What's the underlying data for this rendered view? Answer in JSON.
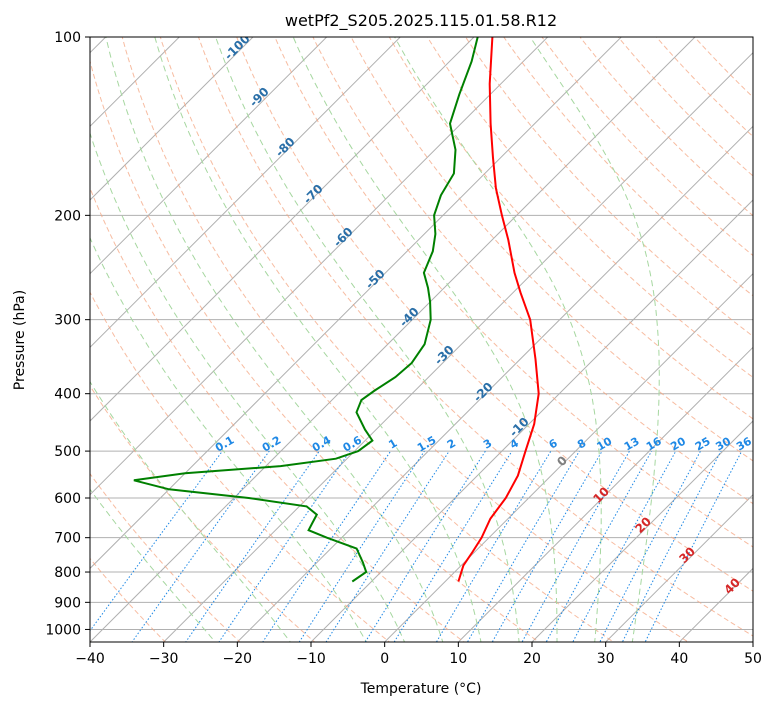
{
  "chart_data": {
    "type": "line",
    "title": "wetPf2_S205.2025.115.01.58.R12",
    "xlabel": "Temperature (°C)",
    "ylabel": "Pressure (hPa)",
    "xlim": [
      -40,
      50
    ],
    "ylim": [
      1050,
      100
    ],
    "y_scale": "log",
    "grid": true,
    "x_ticks": [
      -40,
      -30,
      -20,
      -10,
      0,
      10,
      20,
      30,
      40,
      50
    ],
    "y_ticks": [
      100,
      200,
      300,
      400,
      500,
      600,
      700,
      800,
      900,
      1000
    ],
    "series": [
      {
        "role": "temperature",
        "color": "#ff0000",
        "points": [
          {
            "p": 830,
            "t": 1.8
          },
          {
            "p": 780,
            "t": 0.3
          },
          {
            "p": 740,
            "t": -0.3
          },
          {
            "p": 700,
            "t": -1.0
          },
          {
            "p": 650,
            "t": -2.4
          },
          {
            "p": 600,
            "t": -3.1
          },
          {
            "p": 550,
            "t": -4.5
          },
          {
            "p": 500,
            "t": -6.8
          },
          {
            "p": 450,
            "t": -9.3
          },
          {
            "p": 400,
            "t": -12.8
          },
          {
            "p": 350,
            "t": -17.9
          },
          {
            "p": 300,
            "t": -24.0
          },
          {
            "p": 270,
            "t": -29.0
          },
          {
            "p": 250,
            "t": -32.5
          },
          {
            "p": 220,
            "t": -37.8
          },
          {
            "p": 200,
            "t": -42.0
          },
          {
            "p": 180,
            "t": -46.5
          },
          {
            "p": 160,
            "t": -51.0
          },
          {
            "p": 140,
            "t": -56.0
          },
          {
            "p": 120,
            "t": -61.5
          },
          {
            "p": 100,
            "t": -67.5
          }
        ]
      },
      {
        "role": "dewpoint",
        "color": "#008000",
        "points": [
          {
            "p": 830,
            "t": -12.6
          },
          {
            "p": 800,
            "t": -12.0
          },
          {
            "p": 770,
            "t": -13.8
          },
          {
            "p": 730,
            "t": -16.5
          },
          {
            "p": 700,
            "t": -22.0
          },
          {
            "p": 680,
            "t": -25.5
          },
          {
            "p": 660,
            "t": -26.0
          },
          {
            "p": 640,
            "t": -26.5
          },
          {
            "p": 620,
            "t": -29.0
          },
          {
            "p": 600,
            "t": -38.0
          },
          {
            "p": 580,
            "t": -50.0
          },
          {
            "p": 560,
            "t": -56.0
          },
          {
            "p": 545,
            "t": -50.0
          },
          {
            "p": 530,
            "t": -38.0
          },
          {
            "p": 515,
            "t": -31.5
          },
          {
            "p": 500,
            "t": -29.5
          },
          {
            "p": 480,
            "t": -29.0
          },
          {
            "p": 460,
            "t": -31.5
          },
          {
            "p": 430,
            "t": -35.0
          },
          {
            "p": 410,
            "t": -36.0
          },
          {
            "p": 395,
            "t": -35.5
          },
          {
            "p": 375,
            "t": -34.5
          },
          {
            "p": 355,
            "t": -34.2
          },
          {
            "p": 330,
            "t": -35.0
          },
          {
            "p": 300,
            "t": -37.5
          },
          {
            "p": 280,
            "t": -40.0
          },
          {
            "p": 265,
            "t": -42.2
          },
          {
            "p": 250,
            "t": -44.8
          },
          {
            "p": 230,
            "t": -46.5
          },
          {
            "p": 215,
            "t": -48.5
          },
          {
            "p": 200,
            "t": -51.2
          },
          {
            "p": 185,
            "t": -53.0
          },
          {
            "p": 170,
            "t": -54.2
          },
          {
            "p": 155,
            "t": -57.2
          },
          {
            "p": 140,
            "t": -61.5
          },
          {
            "p": 125,
            "t": -64.2
          },
          {
            "p": 110,
            "t": -67.0
          },
          {
            "p": 100,
            "t": -69.5
          }
        ]
      }
    ],
    "dry_adiabats_theta_k": [
      190,
      200,
      210,
      220,
      230,
      240,
      250,
      260,
      270,
      280,
      290,
      300,
      310,
      320,
      330,
      340,
      350,
      360,
      370,
      380,
      390,
      400,
      410,
      420,
      430,
      440,
      450
    ],
    "dry_adiabat_labels": [
      "-100",
      "-90",
      "-80",
      "-70",
      "-60",
      "-50",
      "-40",
      "-30",
      "-20",
      "-10",
      "0",
      "10",
      "20",
      "30",
      "40"
    ],
    "mixing_ratio_labels": [
      "0.1",
      "0.2",
      "0.4",
      "0.6",
      "1",
      "1.5",
      "2",
      "3",
      "4",
      "6",
      "8",
      "10",
      "13",
      "16",
      "20",
      "25",
      "30",
      "36"
    ],
    "colors": {
      "grid": "#b0b0b0",
      "dry_adiabat": "#f4a582",
      "moist_adiabat": "#a6d7a0",
      "mixing_ratio": "#1e88e5",
      "dry_adiabat_label": "#2a6fa8",
      "moist_label_warm": "#d62728",
      "moist_label_zero": "#7f7f7f"
    }
  }
}
